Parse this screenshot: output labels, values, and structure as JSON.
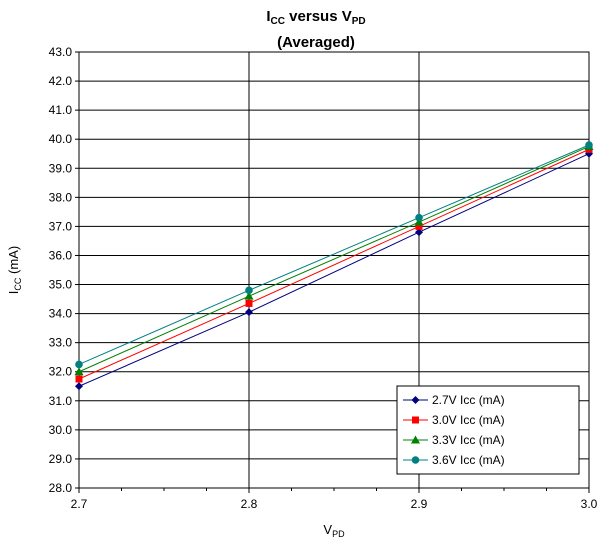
{
  "chart_data": {
    "type": "line",
    "title_main": "I",
    "title_main_sub": "CC",
    "title_mid": " versus V",
    "title_mid_sub": "PD",
    "subtitle": "(Averaged)",
    "xlabel_main": "V",
    "xlabel_sub": "PD",
    "ylabel_main": "I",
    "ylabel_sub": "CC",
    "ylabel_unit": " (mA)",
    "xlim": [
      2.7,
      3.0
    ],
    "ylim": [
      28.0,
      43.0
    ],
    "x_major_step": 0.1,
    "x_minor_step": 0.025,
    "y_step": 1.0,
    "x_tick_labels": [
      "2.7",
      "2.8",
      "2.9",
      "3.0"
    ],
    "y_tick_labels": [
      "28.0",
      "29.0",
      "30.0",
      "31.0",
      "32.0",
      "33.0",
      "34.0",
      "35.0",
      "36.0",
      "37.0",
      "38.0",
      "39.0",
      "40.0",
      "41.0",
      "42.0",
      "43.0"
    ],
    "grid": true,
    "legend_position": "bottom-right",
    "x": [
      2.7,
      2.8,
      2.9,
      3.0
    ],
    "series": [
      {
        "name": "2.7V Icc (mA)",
        "color": "#000080",
        "marker": "diamond",
        "values": [
          31.5,
          34.05,
          36.8,
          39.5
        ]
      },
      {
        "name": "3.0V Icc (mA)",
        "color": "#ff0000",
        "marker": "square",
        "values": [
          31.75,
          34.35,
          37.0,
          39.65
        ]
      },
      {
        "name": "3.3V Icc (mA)",
        "color": "#008000",
        "marker": "triangle",
        "values": [
          32.0,
          34.6,
          37.15,
          39.75
        ]
      },
      {
        "name": "3.6V Icc (mA)",
        "color": "#008080",
        "marker": "circle",
        "values": [
          32.25,
          34.8,
          37.3,
          39.8
        ]
      }
    ]
  }
}
